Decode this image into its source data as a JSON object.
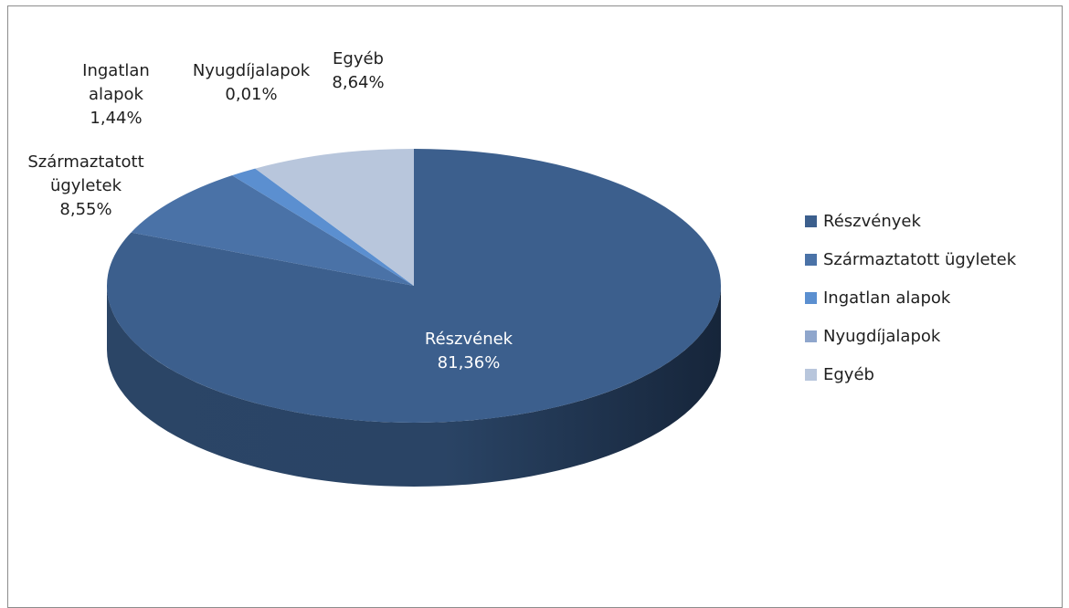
{
  "chart_data": {
    "type": "pie",
    "style": "3d",
    "title": "",
    "series": [
      {
        "categories": [
          "Részvények",
          "Származtatott ügyletek",
          "Ingatlan alapok",
          "Nyugdíjalapok",
          "Egyéb"
        ],
        "values": [
          81.36,
          8.55,
          1.44,
          0.01,
          8.64
        ],
        "colors": [
          "#3c5f8d",
          "#4a72a7",
          "#5b8fd0",
          "#8fa6cc",
          "#b8c6dc"
        ],
        "data_labels": [
          [
            "Részvének",
            "81,36%"
          ],
          [
            "Származtatott",
            "ügyletek",
            "8,55%"
          ],
          [
            "Ingatlan",
            "alapok",
            "1,44%"
          ],
          [
            "Nyugdíjalapok",
            "0,01%"
          ],
          [
            "Egyéb",
            "8,64%"
          ]
        ]
      }
    ],
    "legend": {
      "position": "right",
      "items": [
        "Részvények",
        "Származtatott ügyletek",
        "Ingatlan alapok",
        "Nyugdíjalapok",
        "Egyéb"
      ]
    }
  }
}
